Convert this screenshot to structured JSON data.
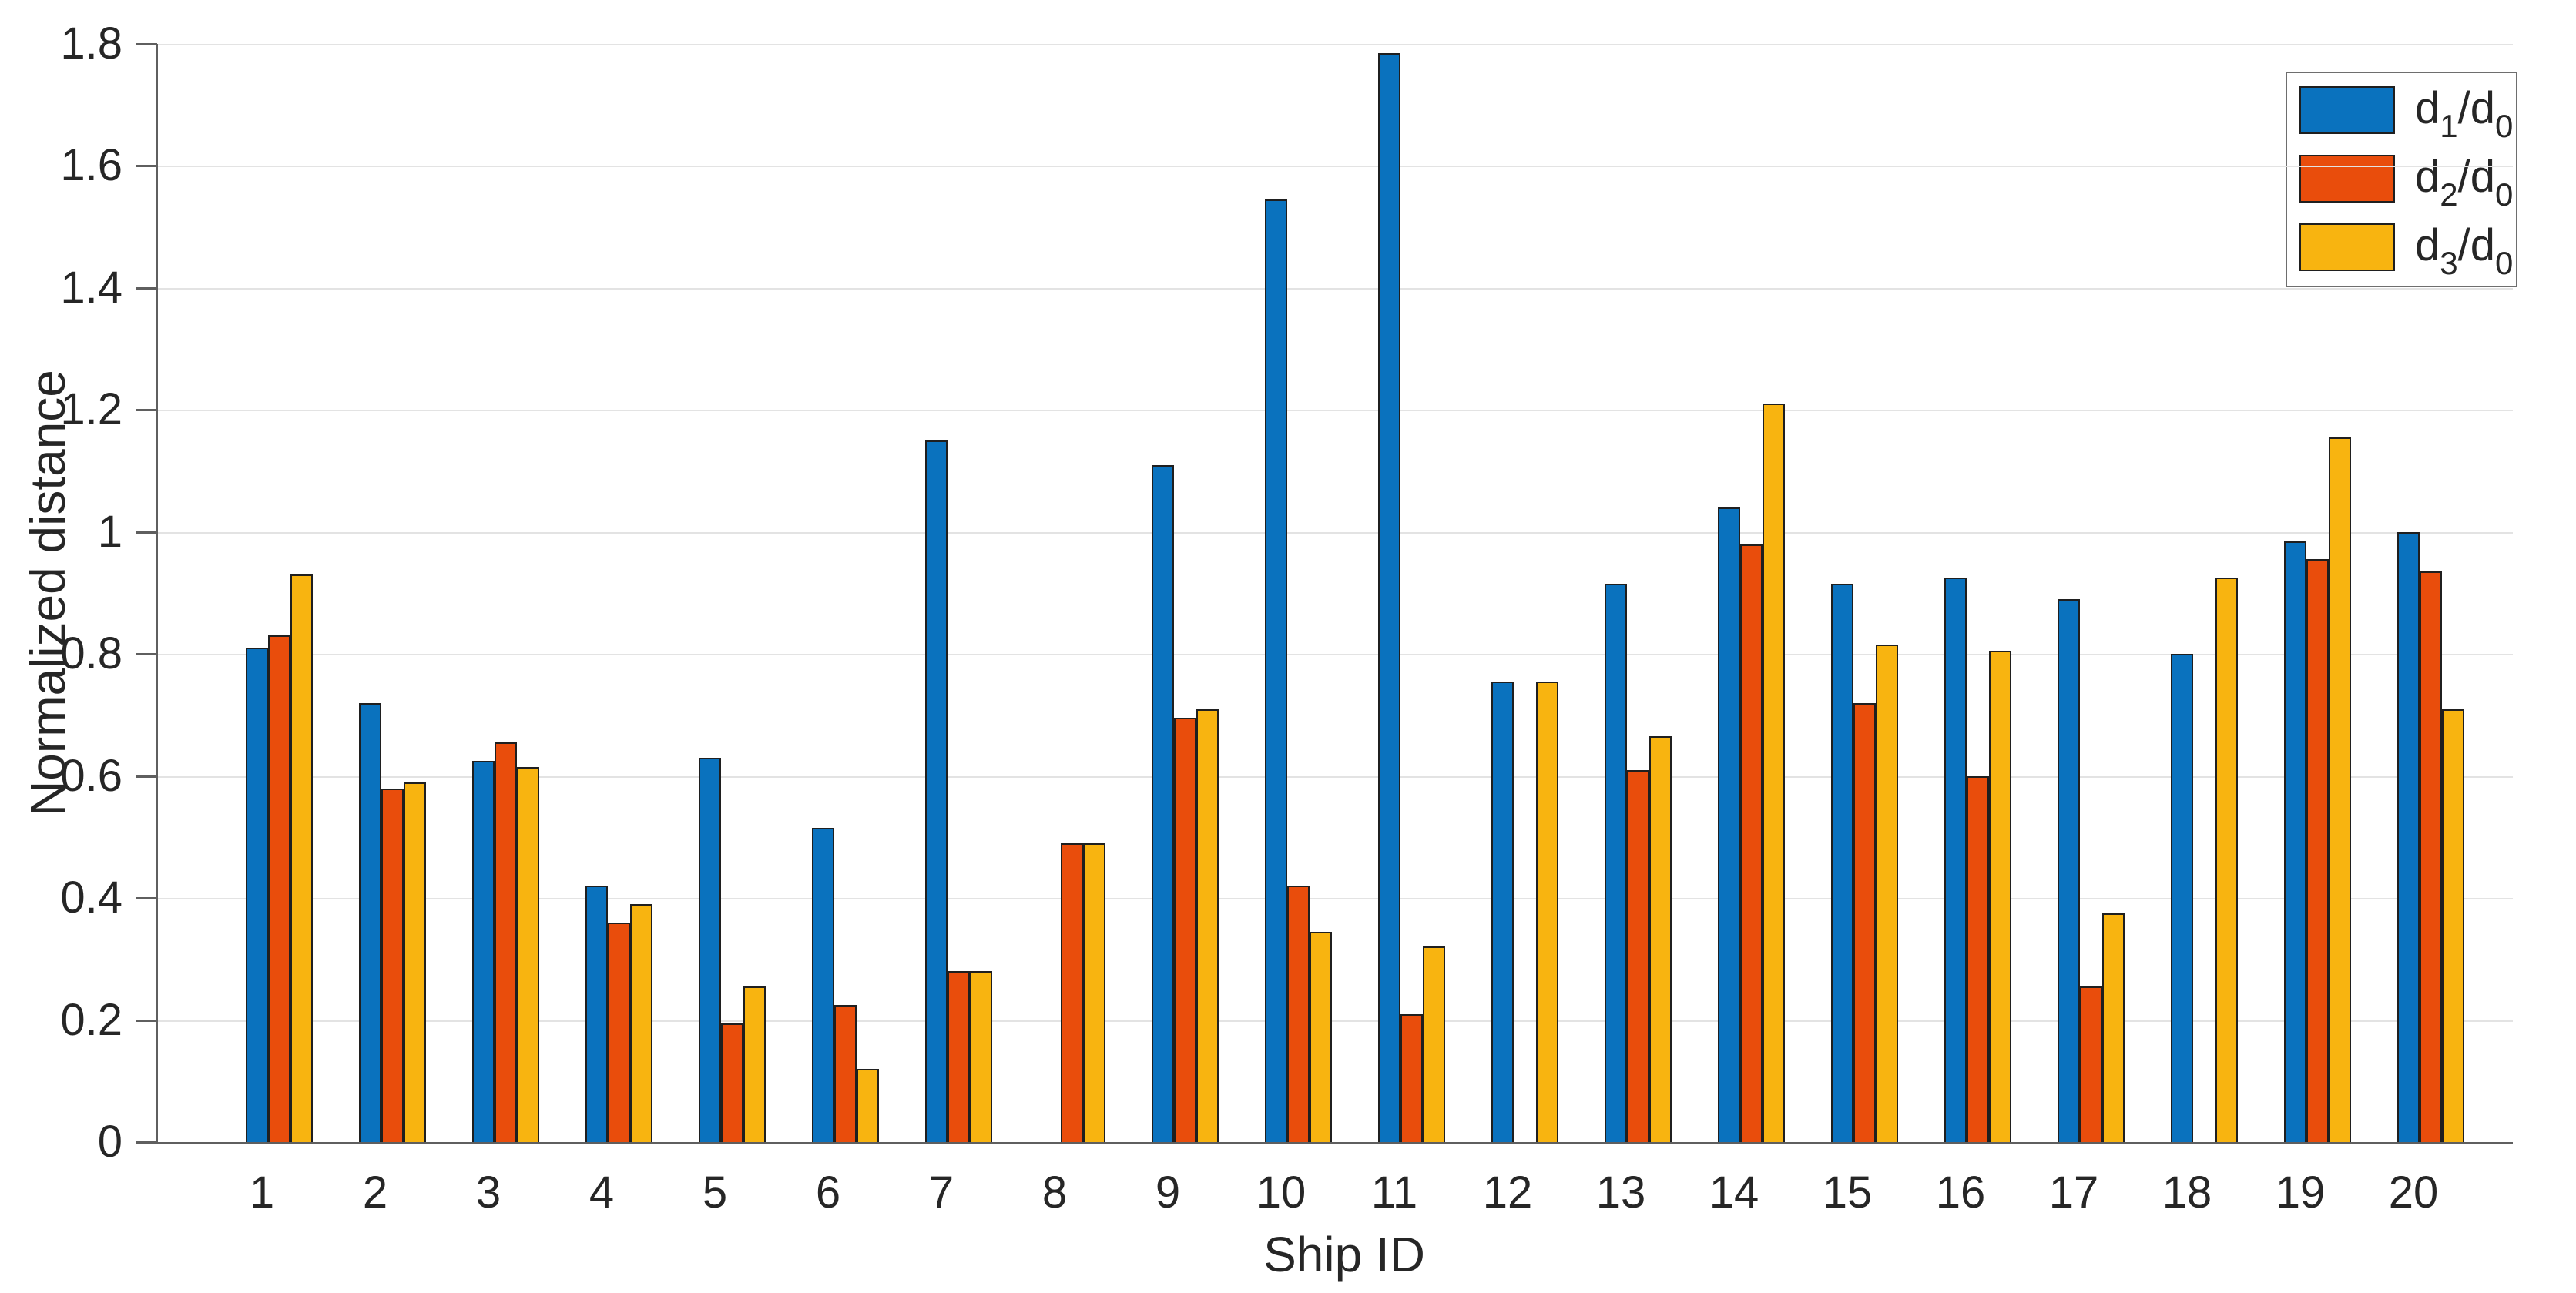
{
  "chart_data": {
    "type": "bar",
    "title": "",
    "xlabel": "Ship ID",
    "ylabel": "Normalized distance",
    "categories": [
      "1",
      "2",
      "3",
      "4",
      "5",
      "6",
      "7",
      "8",
      "9",
      "10",
      "11",
      "12",
      "13",
      "14",
      "15",
      "16",
      "17",
      "18",
      "19",
      "20"
    ],
    "series": [
      {
        "name": "d1/d0",
        "color": "#0A72BE",
        "values": [
          0.81,
          0.72,
          0.625,
          0.42,
          0.63,
          0.515,
          1.15,
          0,
          1.11,
          1.545,
          1.785,
          0.755,
          0.915,
          1.04,
          0.915,
          0.925,
          0.89,
          0.8,
          0.985,
          1.0
        ]
      },
      {
        "name": "d2/d0",
        "color": "#E94D0C",
        "values": [
          0.83,
          0.58,
          0.655,
          0.36,
          0.195,
          0.225,
          0.28,
          0.49,
          0.695,
          0.42,
          0.21,
          0,
          0.61,
          0.98,
          0.72,
          0.6,
          0.255,
          0,
          0.955,
          0.935
        ]
      },
      {
        "name": "d3/d0",
        "color": "#F8B410",
        "values": [
          0.93,
          0.59,
          0.615,
          0.39,
          0.255,
          0.12,
          0.28,
          0.49,
          0.71,
          0.345,
          0.32,
          0.755,
          0.665,
          1.21,
          0.815,
          0.805,
          0.375,
          0.925,
          1.155,
          0.71
        ]
      }
    ],
    "ylim": [
      0,
      1.8
    ],
    "yticks": [
      0,
      0.2,
      0.4,
      0.6,
      0.8,
      1.0,
      1.2,
      1.4,
      1.6,
      1.8
    ],
    "ytick_labels": [
      "0",
      "0.2",
      "0.4",
      "0.6",
      "0.8",
      "1",
      "1.2",
      "1.4",
      "1.6",
      "1.8"
    ],
    "grid": true,
    "legend_position": "northeast"
  },
  "legend": {
    "entries": [
      {
        "pre": "d",
        "sub1": "1",
        "mid": "/d",
        "sub2": "0",
        "series": "d1/d0"
      },
      {
        "pre": "d",
        "sub1": "2",
        "mid": "/d",
        "sub2": "0",
        "series": "d2/d0"
      },
      {
        "pre": "d",
        "sub1": "3",
        "mid": "/d",
        "sub2": "0",
        "series": "d3/d0"
      }
    ]
  },
  "colors": {
    "background": "#ffffff",
    "gridline": "#e3e3e3",
    "spine": "#5f5f5f",
    "tick": "#5f5f5f",
    "text": "#262626",
    "bar_edge": "#1f1f1f",
    "legend_border": "#6e6e6e",
    "series_blue": "#0A72BE",
    "series_orange": "#E94D0C",
    "series_yellow": "#F8B410"
  }
}
